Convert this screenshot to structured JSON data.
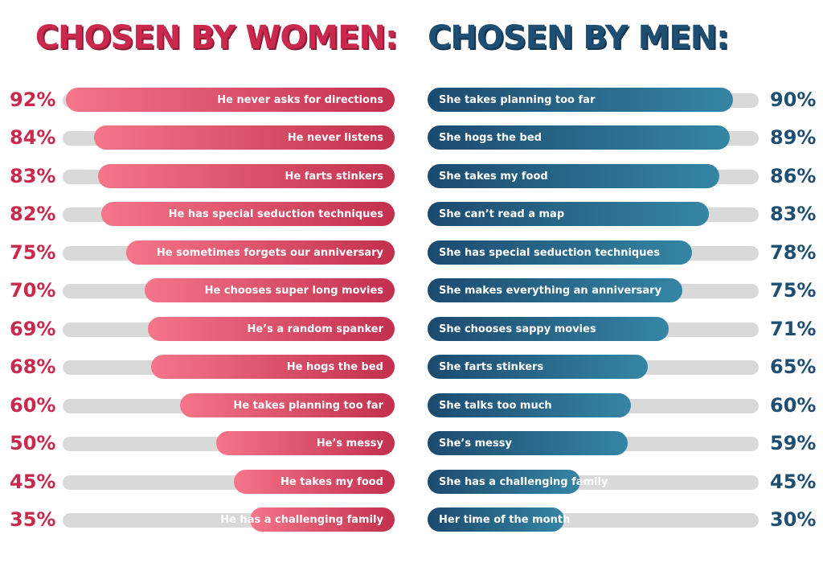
{
  "chart_data": [
    {
      "type": "bar",
      "orientation": "horizontal",
      "title": "CHOSEN BY WOMEN:",
      "categories": [
        "He never asks for directions",
        "He never listens",
        "He farts stinkers",
        "He has special seduction techniques",
        "He sometimes forgets our anniversary",
        "He chooses super long movies",
        "He’s a random spanker",
        "He hogs the bed",
        "He takes planning too far",
        "He’s messy",
        "He takes my food",
        "He has a challenging family"
      ],
      "values": [
        92,
        84,
        83,
        82,
        75,
        70,
        69,
        68,
        60,
        50,
        45,
        35
      ],
      "value_labels": [
        "92%",
        "84%",
        "83%",
        "82%",
        "75%",
        "70%",
        "69%",
        "68%",
        "60%",
        "50%",
        "45%",
        "35%"
      ],
      "xlim": [
        0,
        100
      ],
      "colors": {
        "bar_start": "#f57589",
        "bar_end": "#c2304e",
        "label": "#c8294d",
        "track": "#d9d9d9"
      }
    },
    {
      "type": "bar",
      "orientation": "horizontal",
      "title": "CHOSEN BY MEN:",
      "categories": [
        "She takes planning too far",
        "She hogs the bed",
        "She takes my food",
        "She can’t read a map",
        "She has special seduction techniques",
        "She makes everything an anniversary",
        "She chooses sappy movies",
        "She farts stinkers",
        "She talks too much",
        "She’s messy",
        "She has a challenging family",
        "Her time of the month"
      ],
      "values": [
        90,
        89,
        86,
        83,
        78,
        75,
        71,
        65,
        60,
        59,
        45,
        30
      ],
      "value_labels": [
        "90%",
        "89%",
        "86%",
        "83%",
        "78%",
        "75%",
        "71%",
        "65%",
        "60%",
        "59%",
        "45%",
        "30%"
      ],
      "xlim": [
        0,
        100
      ],
      "colors": {
        "bar_start": "#1c4a6f",
        "bar_end": "#3585a4",
        "label": "#1e4f73",
        "track": "#d9d9d9"
      }
    }
  ]
}
